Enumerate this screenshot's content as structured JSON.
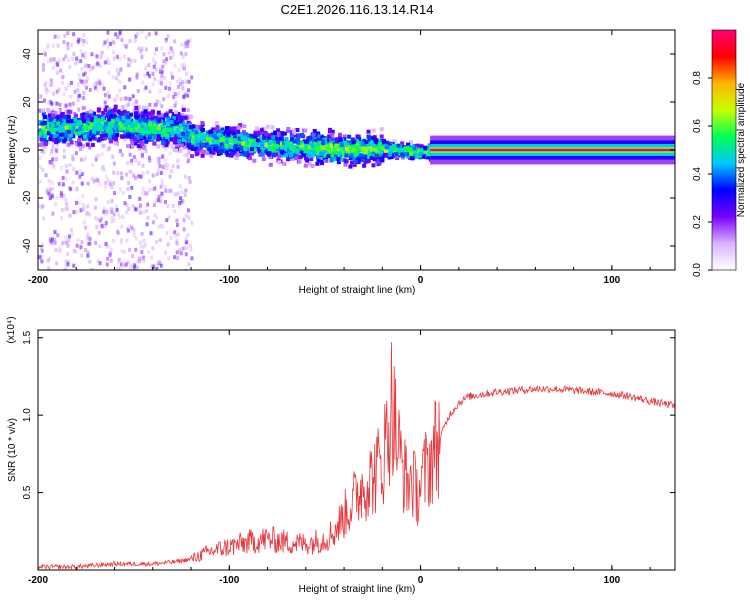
{
  "title": "C2E1.2026.116.13.14.R14",
  "chart_data": [
    {
      "type": "heatmap",
      "name": "spectrogram",
      "xlabel": "Height of straight line (km)",
      "ylabel": "Frequency (Hz)",
      "xlim": [
        -200,
        133
      ],
      "ylim": [
        -50,
        50
      ],
      "xticks": [
        -200,
        -100,
        0,
        100
      ],
      "xtick_labels": [
        "-200",
        "-100",
        "0",
        "100"
      ],
      "yticks": [
        -40,
        -20,
        0,
        20,
        40
      ],
      "ytick_labels": [
        "-40",
        "-20",
        "0",
        "20",
        "40"
      ],
      "colorbar": {
        "label": "Normalized spectral amplitude",
        "range": [
          0,
          1
        ],
        "ticks": [
          0,
          0.2,
          0.4,
          0.6,
          0.8
        ],
        "tick_labels": [
          "0.0",
          "0.2",
          "0.4",
          "0.6",
          "0.8"
        ],
        "colormap": [
          "#ffffff",
          "#d9b3ff",
          "#7a00ff",
          "#0000ff",
          "#00c8ff",
          "#00ff50",
          "#c8ff00",
          "#ffb400",
          "#ff0000",
          "#ff0078"
        ]
      },
      "ridge": {
        "x": [
          -200,
          -180,
          -160,
          -140,
          -125,
          -120,
          -100,
          -80,
          -60,
          -40,
          -20,
          -10,
          0,
          10,
          133
        ],
        "center_freq": [
          10,
          10,
          11,
          10,
          9,
          6,
          4,
          3,
          2,
          1,
          1,
          0.5,
          0,
          0,
          0
        ]
      }
    },
    {
      "type": "line",
      "name": "snr",
      "xlabel": "Height of straight line (km)",
      "ylabel": "SNR (10 * v/v)",
      "scale_label": "(x10⁴)",
      "xlim": [
        -200,
        133
      ],
      "ylim": [
        0,
        1.55
      ],
      "xticks": [
        -200,
        -100,
        0,
        100
      ],
      "xtick_labels": [
        "-200",
        "-100",
        "0",
        "100"
      ],
      "yticks": [
        0.5,
        1.0,
        1.5
      ],
      "ytick_labels": [
        "0.5",
        "1.0",
        "1.5"
      ],
      "color": "#e8363a",
      "x": [
        -200,
        -180,
        -160,
        -140,
        -130,
        -120,
        -110,
        -100,
        -90,
        -80,
        -70,
        -60,
        -50,
        -45,
        -40,
        -35,
        -30,
        -25,
        -20,
        -17,
        -15,
        -12,
        -10,
        -7,
        -5,
        -2,
        0,
        3,
        5,
        8,
        10,
        15,
        20,
        25,
        30,
        40,
        50,
        60,
        70,
        80,
        90,
        100,
        110,
        120,
        133
      ],
      "values": [
        0.02,
        0.02,
        0.04,
        0.04,
        0.05,
        0.07,
        0.12,
        0.15,
        0.18,
        0.2,
        0.18,
        0.17,
        0.2,
        0.25,
        0.35,
        0.45,
        0.55,
        0.6,
        0.7,
        0.9,
        1.1,
        0.8,
        0.7,
        0.55,
        0.6,
        0.5,
        0.55,
        0.65,
        0.7,
        0.8,
        0.85,
        1.0,
        1.08,
        1.12,
        1.13,
        1.15,
        1.16,
        1.17,
        1.17,
        1.16,
        1.15,
        1.14,
        1.12,
        1.09,
        1.06
      ]
    }
  ]
}
